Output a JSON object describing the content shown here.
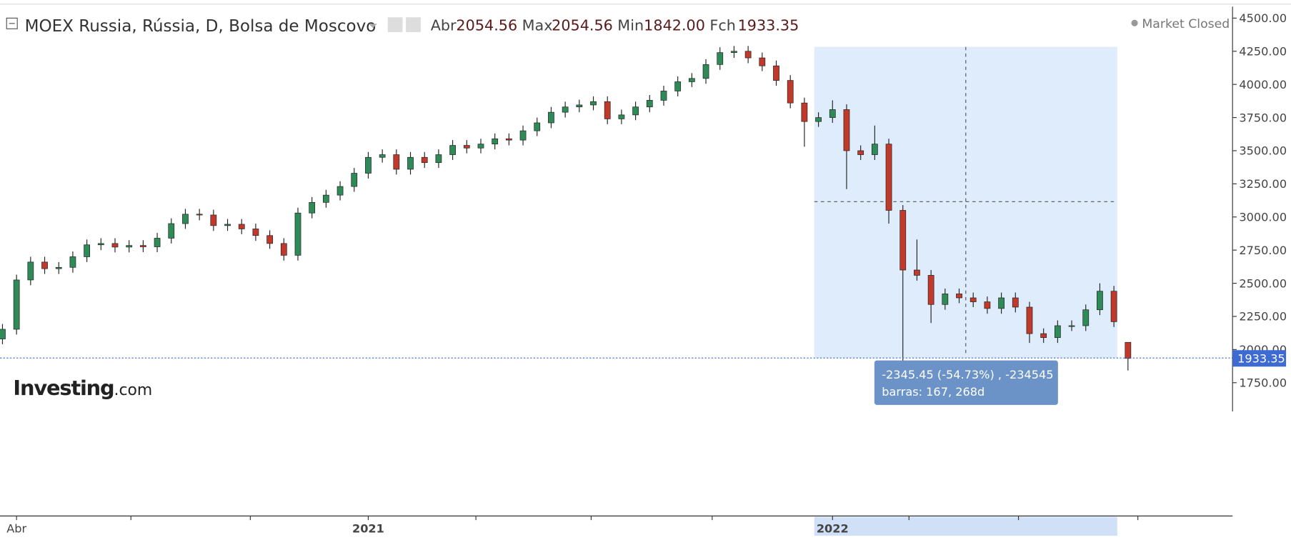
{
  "header": {
    "title": "MOEX Russia, Rússia, D, Bolsa de Moscovo",
    "stats": [
      {
        "label": "Abr",
        "value": "2054.56"
      },
      {
        "label": "Max",
        "value": "2054.56"
      },
      {
        "label": "Min",
        "value": "1842.00"
      },
      {
        "label": "Fch",
        "value": "1933.35"
      }
    ],
    "status": "Market Closed",
    "logo": "Investing",
    "logo_suffix": ".com"
  },
  "chart_data": {
    "type": "candlestick",
    "categories": [
      null,
      "Abr",
      null,
      null,
      null,
      null,
      null,
      null,
      null,
      null,
      null,
      null,
      null,
      null,
      null,
      null,
      null,
      null,
      null,
      null,
      null,
      null,
      null,
      null,
      null,
      null,
      "2021",
      null,
      null,
      null,
      null,
      null,
      null,
      null,
      null,
      null,
      null,
      null,
      null,
      null,
      null,
      null,
      null,
      null,
      null,
      null,
      null,
      null,
      null,
      null,
      null,
      null,
      null,
      null,
      null,
      null,
      null,
      null,
      null,
      "2022",
      null,
      null,
      null,
      null,
      null,
      null,
      null,
      null,
      null,
      null,
      null,
      null,
      null,
      null,
      null,
      null,
      null,
      null,
      null,
      null,
      null
    ],
    "open": [
      2080,
      2153,
      2525,
      2660,
      2610,
      2620,
      2700,
      2790,
      2800,
      2773,
      2785,
      2775,
      2840,
      2950,
      3021,
      3015,
      2935,
      2945,
      2910,
      2860,
      2800,
      2711,
      3030,
      3110,
      3165,
      3230,
      3330,
      3450,
      3470,
      3360,
      3450,
      3410,
      3470,
      3540,
      3520,
      3550,
      3590,
      3580,
      3650,
      3710,
      3790,
      3830,
      3845,
      3870,
      3740,
      3770,
      3830,
      3880,
      3950,
      4020,
      4045,
      4150,
      4240,
      4250,
      4200,
      4140,
      4030,
      3860,
      3720,
      3750,
      3810,
      3500,
      3470,
      3550,
      3050,
      2600,
      2560,
      2340,
      2420,
      2390,
      2360,
      2310,
      2390,
      2320,
      2120,
      2090,
      2180,
      2180,
      2300,
      2440,
      2054.56
    ],
    "high": [
      2193,
      2565,
      2700,
      2700,
      2660,
      2740,
      2830,
      2840,
      2840,
      2825,
      2825,
      2880,
      2990,
      3061,
      3061,
      3055,
      2985,
      2985,
      2950,
      2900,
      2840,
      3070,
      3150,
      3205,
      3270,
      3370,
      3490,
      3510,
      3510,
      3490,
      3490,
      3510,
      3580,
      3580,
      3590,
      3630,
      3630,
      3690,
      3750,
      3830,
      3870,
      3885,
      3910,
      3910,
      3810,
      3870,
      3920,
      3990,
      4060,
      4085,
      4190,
      4280,
      4290,
      4290,
      4240,
      4180,
      4070,
      3900,
      3790,
      3880,
      3850,
      3540,
      3690,
      3590,
      3090,
      2830,
      2600,
      2460,
      2460,
      2430,
      2400,
      2430,
      2430,
      2360,
      2160,
      2220,
      2220,
      2340,
      2500,
      2480,
      2054.56
    ],
    "low": [
      2040,
      2113,
      2485,
      2570,
      2570,
      2580,
      2660,
      2750,
      2733,
      2733,
      2735,
      2735,
      2800,
      2910,
      2975,
      2895,
      2895,
      2870,
      2820,
      2760,
      2671,
      2671,
      2990,
      3070,
      3125,
      3190,
      3290,
      3410,
      3320,
      3320,
      3370,
      3370,
      3430,
      3480,
      3480,
      3510,
      3540,
      3540,
      3610,
      3670,
      3750,
      3790,
      3805,
      3700,
      3700,
      3730,
      3790,
      3840,
      3910,
      3980,
      4005,
      4110,
      4200,
      4160,
      4100,
      3990,
      3820,
      3530,
      3680,
      3710,
      3210,
      3430,
      3430,
      2950,
      1905,
      2520,
      2200,
      2300,
      2350,
      2320,
      2270,
      2270,
      2280,
      2050,
      2050,
      2050,
      2140,
      2140,
      2260,
      2170,
      1842
    ],
    "close": [
      2153,
      2525,
      2660,
      2610,
      2620,
      2700,
      2790,
      2800,
      2773,
      2785,
      2775,
      2840,
      2950,
      3021,
      3015,
      2935,
      2945,
      2910,
      2860,
      2800,
      2711,
      3030,
      3110,
      3165,
      3230,
      3330,
      3450,
      3470,
      3360,
      3450,
      3410,
      3470,
      3540,
      3520,
      3550,
      3590,
      3580,
      3650,
      3710,
      3790,
      3830,
      3845,
      3870,
      3740,
      3770,
      3830,
      3880,
      3950,
      4020,
      4045,
      4150,
      4240,
      4250,
      4200,
      4140,
      4030,
      3860,
      3720,
      3750,
      3810,
      3500,
      3470,
      3550,
      3050,
      2600,
      2560,
      2340,
      2420,
      2390,
      2360,
      2310,
      2390,
      2320,
      2120,
      2090,
      2180,
      2180,
      2300,
      2440,
      2210,
      1933.35
    ],
    "up_color": "#2e8b57",
    "down_color": "#c0392b",
    "ylim": [
      1533,
      4587
    ],
    "yticks": [
      {
        "value": 1750,
        "label": "1750.00"
      },
      {
        "value": 2000,
        "label": "2000.00"
      },
      {
        "value": 2250,
        "label": "2250.00"
      },
      {
        "value": 2500,
        "label": "2500.00"
      },
      {
        "value": 2750,
        "label": "2750.00"
      },
      {
        "value": 3000,
        "label": "3000.00"
      },
      {
        "value": 3250,
        "label": "3250.00"
      },
      {
        "value": 3500,
        "label": "3500.00"
      },
      {
        "value": 3750,
        "label": "3750.00"
      },
      {
        "value": 4000,
        "label": "4000.00"
      },
      {
        "value": 4250,
        "label": "4250.00"
      },
      {
        "value": 4500,
        "label": "4500.00"
      }
    ],
    "annotations": [
      "-2345.45 (-54.73%) , -234545",
      "barras: 167, 268d"
    ]
  }
}
